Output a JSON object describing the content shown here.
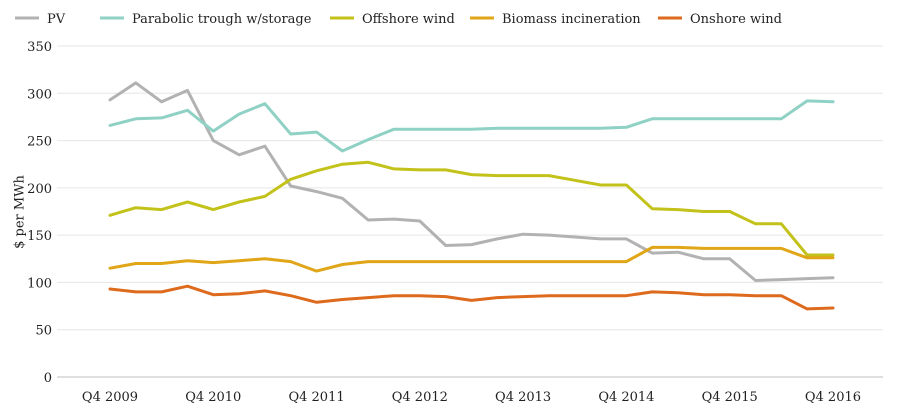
{
  "chart_data": {
    "type": "line",
    "title": "",
    "xlabel": "",
    "ylabel": "$ per MWh",
    "ylim": [
      0,
      350
    ],
    "yticks": [
      0,
      50,
      100,
      150,
      200,
      250,
      300,
      350
    ],
    "grid": true,
    "legend_position": "top",
    "x_tick_labels": [
      "Q4 2009",
      "Q4 2010",
      "Q4 2011",
      "Q4 2012",
      "Q4 2013",
      "Q4 2014",
      "Q4 2015",
      "Q4 2016"
    ],
    "x_tick_indices": [
      0,
      4,
      8,
      12,
      16,
      20,
      24,
      28
    ],
    "x": [
      "Q4 2009",
      "Q1 2010",
      "Q2 2010",
      "Q3 2010",
      "Q4 2010",
      "Q1 2011",
      "Q2 2011",
      "Q3 2011",
      "Q4 2011",
      "Q1 2012",
      "Q2 2012",
      "Q3 2012",
      "Q4 2012",
      "Q1 2013",
      "Q2 2013",
      "Q3 2013",
      "Q4 2013",
      "Q1 2014",
      "Q2 2014",
      "Q3 2014",
      "Q4 2014",
      "Q1 2015",
      "Q2 2015",
      "Q3 2015",
      "Q4 2015",
      "Q1 2016",
      "Q2 2016",
      "Q3 2016",
      "Q4 2016"
    ],
    "series": [
      {
        "name": "PV",
        "color": "#b2b2b2",
        "values": [
          293,
          311,
          291,
          303,
          250,
          235,
          244,
          202,
          196,
          189,
          166,
          167,
          165,
          139,
          140,
          146,
          151,
          150,
          148,
          146,
          146,
          131,
          132,
          125,
          125,
          102,
          103,
          104,
          105
        ]
      },
      {
        "name": "Parabolic trough w/storage",
        "color": "#8fd1c4",
        "values": [
          266,
          273,
          274,
          282,
          260,
          278,
          289,
          257,
          259,
          239,
          251,
          262,
          262,
          262,
          262,
          263,
          263,
          263,
          263,
          263,
          264,
          273,
          273,
          273,
          273,
          273,
          273,
          292,
          291
        ]
      },
      {
        "name": "Offshore wind",
        "color": "#c3c21a",
        "values": [
          171,
          179,
          177,
          185,
          177,
          185,
          191,
          209,
          218,
          225,
          227,
          220,
          219,
          219,
          214,
          213,
          213,
          213,
          208,
          203,
          203,
          178,
          177,
          175,
          175,
          162,
          162,
          129,
          129
        ]
      },
      {
        "name": "Biomass incineration",
        "color": "#e0a617",
        "values": [
          115,
          120,
          120,
          123,
          121,
          123,
          125,
          122,
          112,
          119,
          122,
          122,
          122,
          122,
          122,
          122,
          122,
          122,
          122,
          122,
          122,
          137,
          137,
          136,
          136,
          136,
          136,
          126,
          126
        ]
      },
      {
        "name": "Onshore wind",
        "color": "#dd6a1d",
        "values": [
          93,
          90,
          90,
          96,
          87,
          88,
          91,
          86,
          79,
          82,
          84,
          86,
          86,
          85,
          81,
          84,
          85,
          86,
          86,
          86,
          86,
          90,
          89,
          87,
          87,
          86,
          86,
          72,
          73
        ]
      }
    ]
  }
}
